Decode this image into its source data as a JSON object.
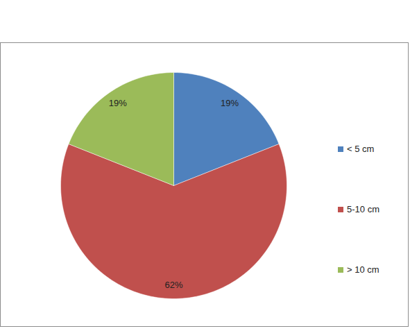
{
  "chart_data": {
    "type": "pie",
    "categories": [
      "< 5 cm",
      "5-10 cm",
      "> 10 cm"
    ],
    "values": [
      19,
      62,
      19
    ],
    "value_labels": [
      "19%",
      "62%",
      "19%"
    ],
    "colors": [
      "#4f81bd",
      "#c0504d",
      "#9bbb59"
    ],
    "data_labels": true,
    "legend": "right"
  }
}
